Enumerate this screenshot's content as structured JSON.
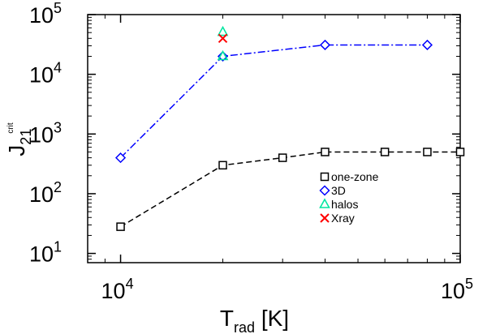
{
  "chart_data": {
    "type": "line",
    "xscale": "log",
    "yscale": "log",
    "xlim": [
      8000,
      100000
    ],
    "ylim": [
      7,
      100000
    ],
    "x_ticks": [
      {
        "value": 10000,
        "base": "10",
        "exp": "4"
      },
      {
        "value": 100000,
        "base": "10",
        "exp": "5"
      }
    ],
    "y_ticks": [
      {
        "value": 10,
        "base": "10",
        "exp": "1"
      },
      {
        "value": 100,
        "base": "10",
        "exp": "2"
      },
      {
        "value": 1000,
        "base": "10",
        "exp": "3"
      },
      {
        "value": 10000,
        "base": "10",
        "exp": "4"
      },
      {
        "value": 100000,
        "base": "10",
        "exp": "5"
      }
    ],
    "xlabel": {
      "main": "T",
      "sub": "rad",
      "rest": " [K]"
    },
    "ylabel": {
      "main": "J",
      "sub": "21",
      "sup": "crit"
    },
    "legend_position": "lower-right",
    "series": [
      {
        "name": "one-zone",
        "color": "#000000",
        "marker": "square",
        "line": "dashed",
        "x": [
          10000,
          20000,
          30000,
          40000,
          60000,
          80000,
          100000
        ],
        "y": [
          28,
          300,
          400,
          500,
          500,
          500,
          500
        ]
      },
      {
        "name": "3D",
        "color": "#0000ff",
        "marker": "diamond",
        "line": "dashdot",
        "x": [
          10000,
          20000,
          40000,
          80000
        ],
        "y": [
          400,
          20000,
          31000,
          31000
        ]
      },
      {
        "name": "halos",
        "color": "#00e6a0",
        "marker": "triangle",
        "line": "none",
        "x": [
          20000,
          20000
        ],
        "y": [
          51000,
          20000
        ]
      },
      {
        "name": "Xray",
        "color": "#ff0000",
        "marker": "x",
        "line": "none",
        "x": [
          20000
        ],
        "y": [
          40000
        ]
      }
    ]
  }
}
